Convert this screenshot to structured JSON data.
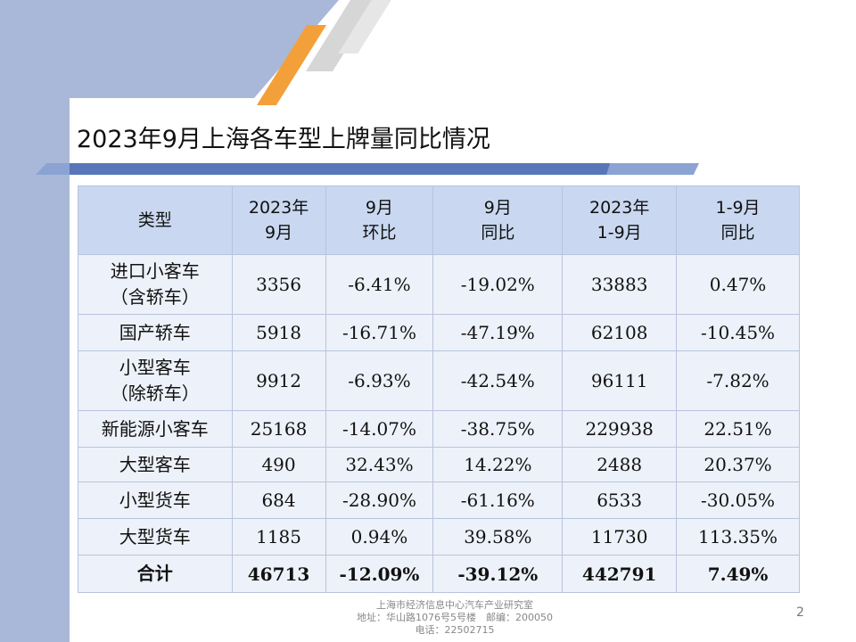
{
  "slide": {
    "title": "2023年9月上海各车型上牌量同比情况",
    "page_number": "2"
  },
  "table": {
    "headers": [
      [
        "类型"
      ],
      [
        "2023年",
        "9月"
      ],
      [
        "9月",
        "环比"
      ],
      [
        "9月",
        "同比"
      ],
      [
        "2023年",
        "1-9月"
      ],
      [
        "1-9月",
        "同比"
      ]
    ],
    "rows": [
      {
        "label": [
          "进口小客车",
          "（含轿车）"
        ],
        "values": [
          "3356",
          "-6.41%",
          "-19.02%",
          "33883",
          "0.47%"
        ]
      },
      {
        "label": [
          "国产轿车"
        ],
        "values": [
          "5918",
          "-16.71%",
          "-47.19%",
          "62108",
          "-10.45%"
        ]
      },
      {
        "label": [
          "小型客车",
          "（除轿车）"
        ],
        "values": [
          "9912",
          "-6.93%",
          "-42.54%",
          "96111",
          "-7.82%"
        ]
      },
      {
        "label": [
          "新能源小客车"
        ],
        "values": [
          "25168",
          "-14.07%",
          "-38.75%",
          "229938",
          "22.51%"
        ]
      },
      {
        "label": [
          "大型客车"
        ],
        "values": [
          "490",
          "32.43%",
          "14.22%",
          "2488",
          "20.37%"
        ]
      },
      {
        "label": [
          "小型货车"
        ],
        "values": [
          "684",
          "-28.90%",
          "-61.16%",
          "6533",
          "-30.05%"
        ]
      },
      {
        "label": [
          "大型货车"
        ],
        "values": [
          "1185",
          "0.94%",
          "39.58%",
          "11730",
          "113.35%"
        ]
      },
      {
        "label": [
          "合计"
        ],
        "values": [
          "46713",
          "-12.09%",
          "-39.12%",
          "442791",
          "7.49%"
        ]
      }
    ]
  },
  "footer": {
    "line1": "上海市经济信息中心汽车产业研究室",
    "line2": "地址：华山路1076号5号楼　邮编：200050",
    "line3": "电话：22502715"
  },
  "colors": {
    "header_fill": "#c9d8f0",
    "cell_fill": "#edf1f9",
    "accent_blue": "#5876b8",
    "accent_orange": "#f4a03a",
    "side_panel": "#a9b8d8"
  }
}
